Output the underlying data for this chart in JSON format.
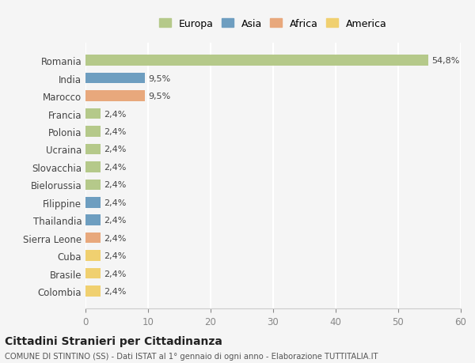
{
  "categories": [
    "Romania",
    "India",
    "Marocco",
    "Francia",
    "Polonia",
    "Ucraina",
    "Slovacchia",
    "Bielorussia",
    "Filippine",
    "Thailandia",
    "Sierra Leone",
    "Cuba",
    "Brasile",
    "Colombia"
  ],
  "values": [
    54.8,
    9.5,
    9.5,
    2.4,
    2.4,
    2.4,
    2.4,
    2.4,
    2.4,
    2.4,
    2.4,
    2.4,
    2.4,
    2.4
  ],
  "labels": [
    "54,8%",
    "9,5%",
    "9,5%",
    "2,4%",
    "2,4%",
    "2,4%",
    "2,4%",
    "2,4%",
    "2,4%",
    "2,4%",
    "2,4%",
    "2,4%",
    "2,4%",
    "2,4%"
  ],
  "colors": [
    "#b5c98a",
    "#6e9ec0",
    "#e8a87c",
    "#b5c98a",
    "#b5c98a",
    "#b5c98a",
    "#b5c98a",
    "#b5c98a",
    "#6e9ec0",
    "#6e9ec0",
    "#e8a87c",
    "#f0d070",
    "#f0d070",
    "#f0d070"
  ],
  "legend_labels": [
    "Europa",
    "Asia",
    "Africa",
    "America"
  ],
  "legend_colors": [
    "#b5c98a",
    "#6e9ec0",
    "#e8a87c",
    "#f0d070"
  ],
  "xlim": [
    0,
    60
  ],
  "xticks": [
    0,
    10,
    20,
    30,
    40,
    50,
    60
  ],
  "title": "Cittadini Stranieri per Cittadinanza",
  "subtitle": "COMUNE DI STINTINO (SS) - Dati ISTAT al 1° gennaio di ogni anno - Elaborazione TUTTITALIA.IT",
  "background_color": "#f5f5f5",
  "grid_color": "#ffffff",
  "bar_height": 0.6
}
